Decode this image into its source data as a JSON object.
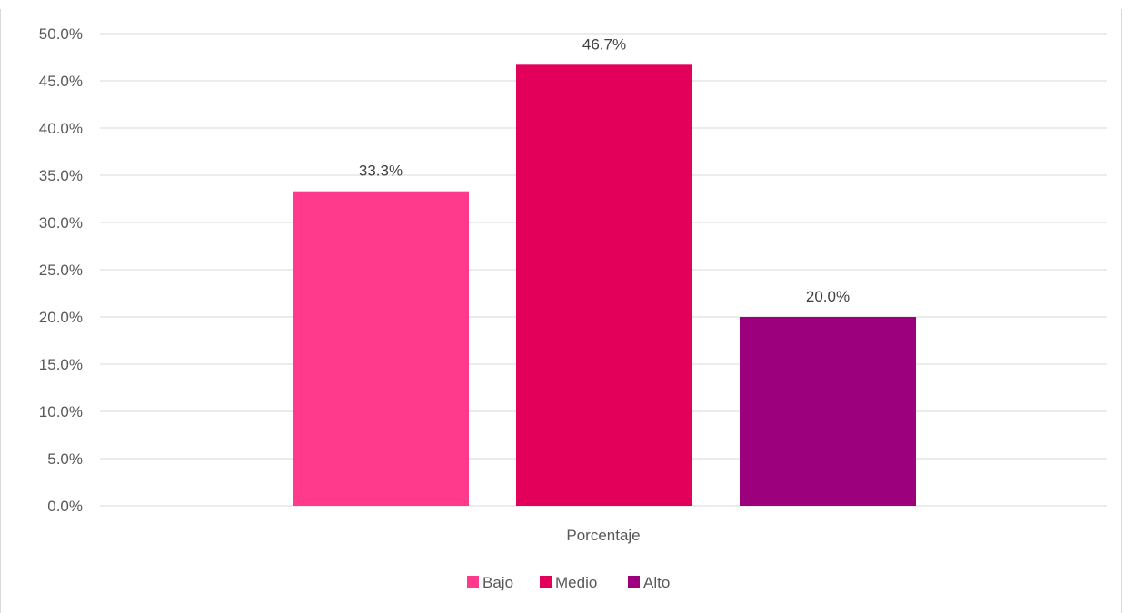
{
  "caption": "",
  "chart_data": {
    "type": "bar",
    "title": "",
    "xlabel": "",
    "ylabel": "",
    "categories": [
      "Porcentaje"
    ],
    "series": [
      {
        "name": "Bajo",
        "values": [
          33.3
        ],
        "label": "33.3%",
        "color": "#ff3a8c"
      },
      {
        "name": "Medio",
        "values": [
          46.7
        ],
        "label": "46.7%",
        "color": "#e3005a"
      },
      {
        "name": "Alto",
        "values": [
          20.0
        ],
        "label": "20.0%",
        "color": "#9c007c"
      }
    ],
    "ylim": [
      0,
      50
    ],
    "yticks": [
      0,
      5,
      10,
      15,
      20,
      25,
      30,
      35,
      40,
      45,
      50
    ],
    "ytick_labels": [
      "0.0%",
      "5.0%",
      "10.0%",
      "15.0%",
      "20.0%",
      "25.0%",
      "30.0%",
      "35.0%",
      "40.0%",
      "45.0%",
      "50.0%"
    ],
    "grid": true,
    "legend_position": "bottom"
  }
}
